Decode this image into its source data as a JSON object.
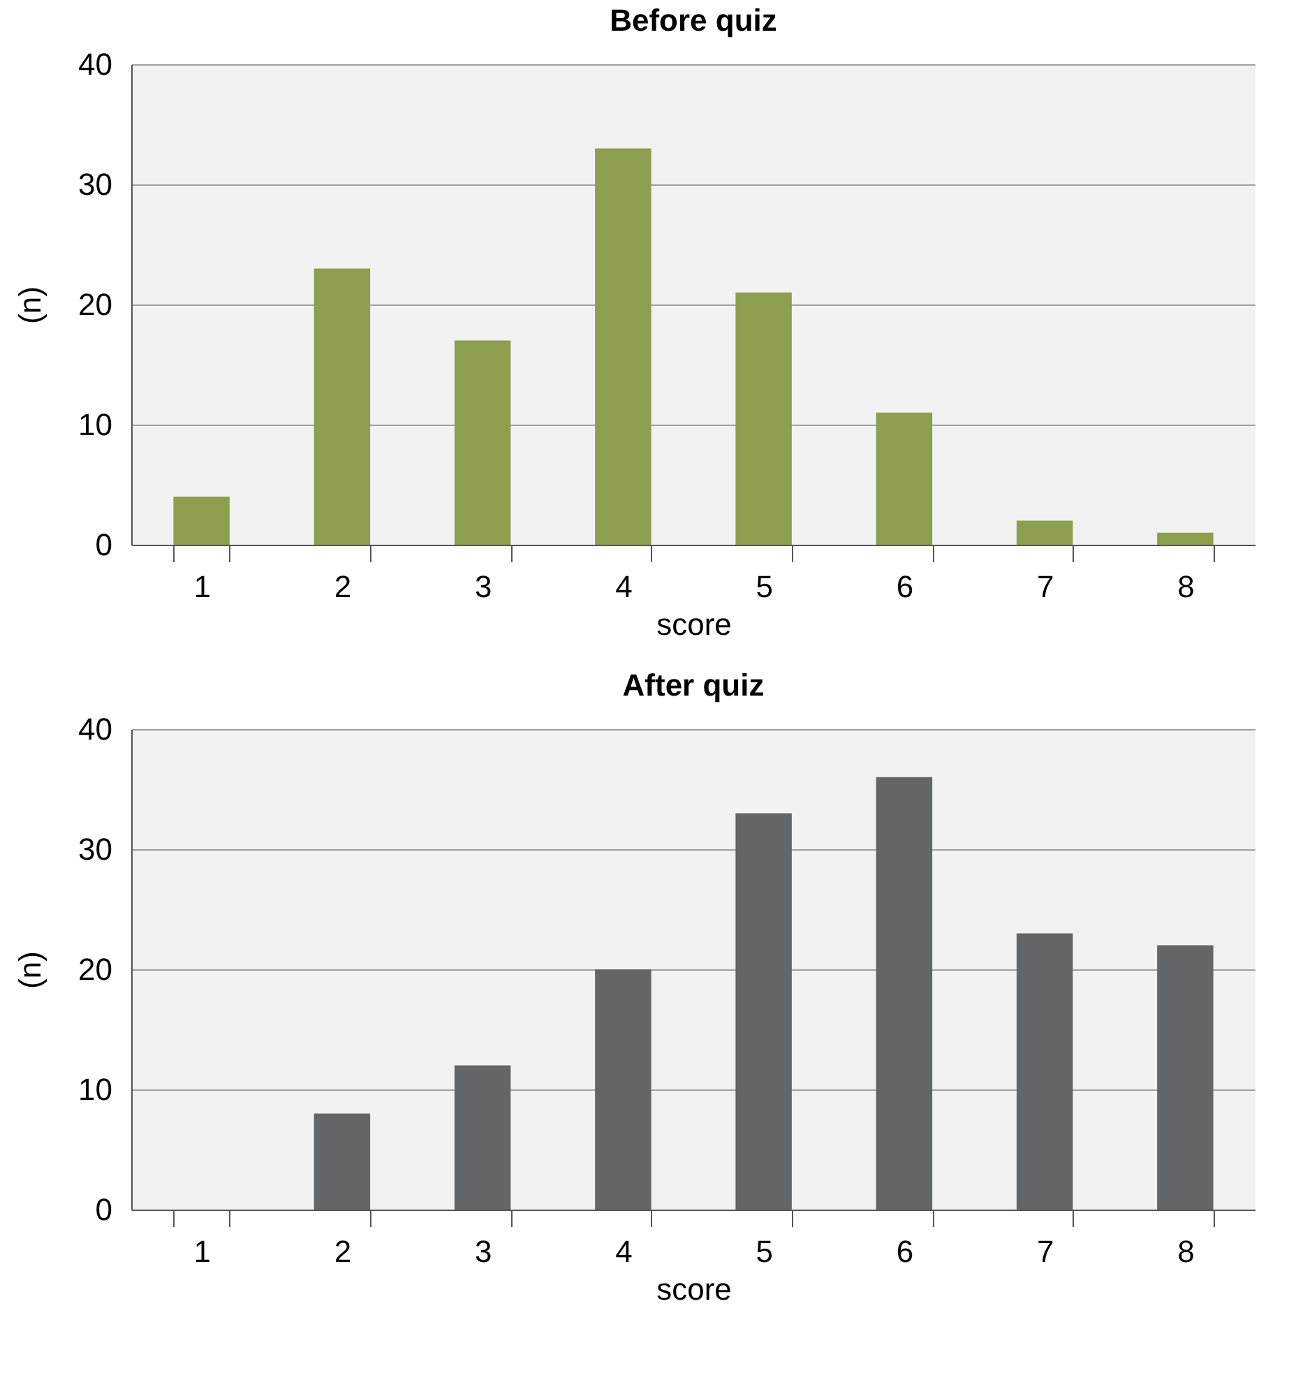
{
  "chart_data": [
    {
      "type": "bar",
      "title": "Before quiz",
      "xlabel": "score",
      "ylabel": "(n)",
      "categories": [
        "1",
        "2",
        "3",
        "4",
        "5",
        "6",
        "7",
        "8"
      ],
      "series": [
        {
          "color": "#8d9e4e",
          "values": [
            4,
            23,
            17,
            33,
            21,
            11,
            2,
            1
          ]
        }
      ],
      "ylim": [
        0,
        40
      ],
      "yticks": [
        0,
        10,
        20,
        30,
        40
      ],
      "grid": "y",
      "legend": false
    },
    {
      "type": "bar",
      "title": "After quiz",
      "xlabel": "score",
      "ylabel": "(n)",
      "categories": [
        "1",
        "2",
        "3",
        "4",
        "5",
        "6",
        "7",
        "8"
      ],
      "series": [
        {
          "color": "#646567",
          "values": [
            0,
            8,
            12,
            20,
            33,
            36,
            23,
            22
          ]
        }
      ],
      "ylim": [
        0,
        40
      ],
      "yticks": [
        0,
        10,
        20,
        30,
        40
      ],
      "grid": "y",
      "legend": false
    }
  ]
}
